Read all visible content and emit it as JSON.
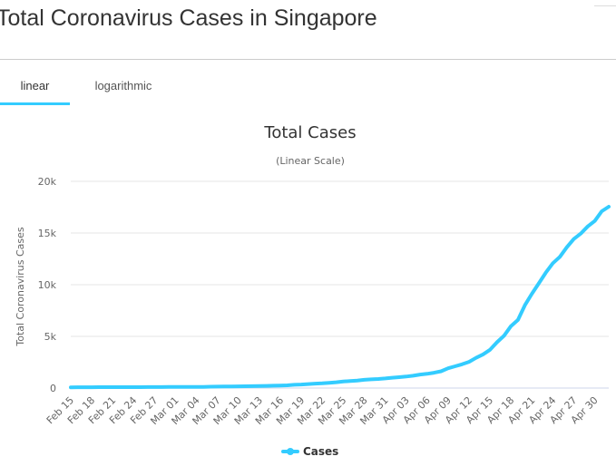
{
  "page": {
    "title": "Total Coronavirus Cases in Singapore"
  },
  "tabs": [
    {
      "label": "linear",
      "active": true
    },
    {
      "label": "logarithmic",
      "active": false
    }
  ],
  "colors": {
    "accent": "#33ccff",
    "grid": "#e6e6e6",
    "text": "#333333",
    "axis_text": "#666666"
  },
  "chart_data": {
    "type": "line",
    "title": "Total Cases",
    "subtitle": "(Linear Scale)",
    "xlabel": "",
    "ylabel": "Total Coronavirus Cases",
    "ylim": [
      0,
      20000
    ],
    "yticks": [
      0,
      5000,
      10000,
      15000,
      20000
    ],
    "ytick_labels": [
      "0",
      "5k",
      "10k",
      "15k",
      "20k"
    ],
    "grid": true,
    "legend": "bottom-center",
    "x": [
      "Feb 15",
      "Feb 16",
      "Feb 17",
      "Feb 18",
      "Feb 19",
      "Feb 20",
      "Feb 21",
      "Feb 22",
      "Feb 23",
      "Feb 24",
      "Feb 25",
      "Feb 26",
      "Feb 27",
      "Feb 28",
      "Feb 29",
      "Mar 01",
      "Mar 02",
      "Mar 03",
      "Mar 04",
      "Mar 05",
      "Mar 06",
      "Mar 07",
      "Mar 08",
      "Mar 09",
      "Mar 10",
      "Mar 11",
      "Mar 12",
      "Mar 13",
      "Mar 14",
      "Mar 15",
      "Mar 16",
      "Mar 17",
      "Mar 18",
      "Mar 19",
      "Mar 20",
      "Mar 21",
      "Mar 22",
      "Mar 23",
      "Mar 24",
      "Mar 25",
      "Mar 26",
      "Mar 27",
      "Mar 28",
      "Mar 29",
      "Mar 30",
      "Mar 31",
      "Apr 01",
      "Apr 02",
      "Apr 03",
      "Apr 04",
      "Apr 05",
      "Apr 06",
      "Apr 07",
      "Apr 08",
      "Apr 09",
      "Apr 10",
      "Apr 11",
      "Apr 12",
      "Apr 13",
      "Apr 14",
      "Apr 15",
      "Apr 16",
      "Apr 17",
      "Apr 18",
      "Apr 19",
      "Apr 20",
      "Apr 21",
      "Apr 22",
      "Apr 23",
      "Apr 24",
      "Apr 25",
      "Apr 26",
      "Apr 27",
      "Apr 28",
      "Apr 29",
      "Apr 30",
      "May 01",
      "May 02"
    ],
    "xtick_labels": [
      "Feb 15",
      "Feb 18",
      "Feb 21",
      "Feb 24",
      "Feb 27",
      "Mar 01",
      "Mar 04",
      "Mar 07",
      "Mar 10",
      "Mar 13",
      "Mar 16",
      "Mar 19",
      "Mar 22",
      "Mar 25",
      "Mar 28",
      "Mar 31",
      "Apr 03",
      "Apr 06",
      "Apr 09",
      "Apr 12",
      "Apr 15",
      "Apr 18",
      "Apr 21",
      "Apr 24",
      "Apr 27",
      "Apr 30"
    ],
    "series": [
      {
        "name": "Cases",
        "color": "#33ccff",
        "values": [
          72,
          75,
          77,
          81,
          84,
          85,
          86,
          89,
          89,
          90,
          91,
          93,
          96,
          98,
          102,
          106,
          108,
          110,
          112,
          117,
          130,
          138,
          150,
          160,
          166,
          178,
          187,
          200,
          212,
          226,
          243,
          266,
          313,
          345,
          385,
          432,
          455,
          509,
          558,
          631,
          683,
          732,
          802,
          844,
          879,
          926,
          1000,
          1049,
          1114,
          1189,
          1309,
          1375,
          1481,
          1623,
          1910,
          2108,
          2299,
          2532,
          2918,
          3252,
          3699,
          4427,
          5050,
          5992,
          6588,
          8014,
          9125,
          10141,
          11178,
          12075,
          12693,
          13624,
          14423,
          14951,
          15641,
          16169,
          17101,
          17548
        ]
      }
    ]
  }
}
